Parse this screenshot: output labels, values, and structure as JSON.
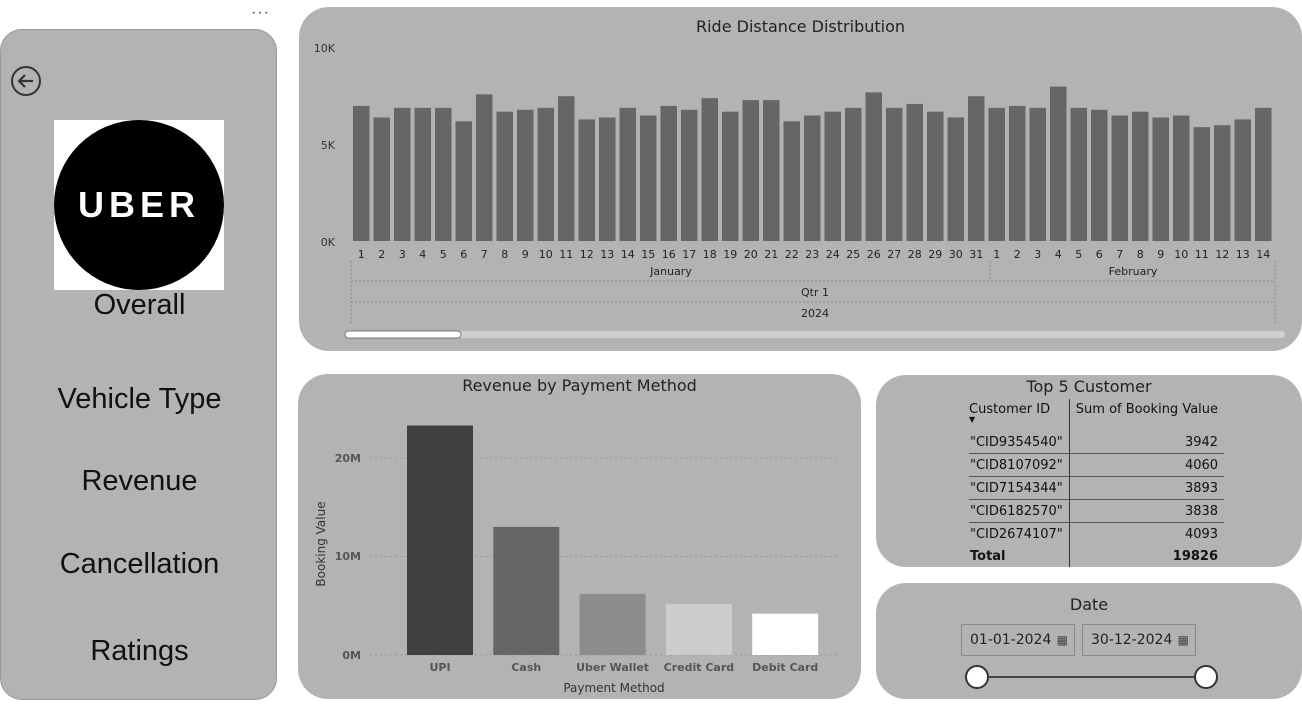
{
  "sidebar": {
    "more_label": "···",
    "logo_text": "UBER",
    "nav": [
      "Overall",
      "Vehicle Type",
      "Revenue",
      "Cancellation",
      "Ratings"
    ]
  },
  "ride_chart": {
    "title": "Ride Distance Distribution",
    "y_ticks": [
      "10K",
      "5K",
      "0K"
    ],
    "month_labels": [
      "January",
      "February"
    ],
    "quarter_label": "Qtr 1",
    "year_label": "2024"
  },
  "revenue_chart": {
    "title": "Revenue by Payment Method",
    "y_ticks": [
      "20M",
      "10M",
      "0M"
    ],
    "xlabel": "Payment Method",
    "ylabel": "Booking Value"
  },
  "top_customers": {
    "title": "Top 5 Customer",
    "col_id": "Customer ID",
    "col_value": "Sum of Booking Value",
    "sort_icon": "sort-descending-icon",
    "rows": [
      {
        "id": "\"CID9354540\"",
        "value": "3942"
      },
      {
        "id": "\"CID8107092\"",
        "value": "4060"
      },
      {
        "id": "\"CID7154344\"",
        "value": "3893"
      },
      {
        "id": "\"CID6182570\"",
        "value": "3838"
      },
      {
        "id": "\"CID2674107\"",
        "value": "4093"
      }
    ],
    "total_label": "Total",
    "total_value": "19826"
  },
  "date_filter": {
    "title": "Date",
    "start": "01-01-2024",
    "end": "30-12-2024",
    "calendar_icon": "calendar-icon"
  },
  "chart_data": [
    {
      "type": "bar",
      "title": "Ride Distance Distribution",
      "xlabel": "",
      "ylabel": "",
      "ylim": [
        0,
        10000
      ],
      "categories": [
        "1",
        "2",
        "3",
        "4",
        "5",
        "6",
        "7",
        "8",
        "9",
        "10",
        "11",
        "12",
        "13",
        "14",
        "15",
        "16",
        "17",
        "18",
        "19",
        "20",
        "21",
        "22",
        "23",
        "24",
        "25",
        "26",
        "27",
        "28",
        "29",
        "30",
        "31",
        "1",
        "2",
        "3",
        "4",
        "5",
        "6",
        "7",
        "8",
        "9",
        "10",
        "11",
        "12",
        "13",
        "14"
      ],
      "values": [
        7000,
        6400,
        6900,
        6900,
        6900,
        6200,
        7600,
        6700,
        6800,
        6900,
        7500,
        6300,
        6400,
        6900,
        6500,
        7000,
        6800,
        7400,
        6700,
        7300,
        7300,
        6200,
        6500,
        6700,
        6900,
        7700,
        6900,
        7100,
        6700,
        6400,
        7500,
        6900,
        7000,
        6900,
        8000,
        6900,
        6800,
        6500,
        6700,
        6400,
        6500,
        5900,
        6000,
        6300,
        6900
      ],
      "x_group_labels": [
        "January",
        "February"
      ],
      "grid": false
    },
    {
      "type": "bar",
      "title": "Revenue by Payment Method",
      "xlabel": "Payment Method",
      "ylabel": "Booking Value",
      "ylim": [
        0,
        25000000
      ],
      "categories": [
        "UPI",
        "Cash",
        "Uber Wallet",
        "Credit Card",
        "Debit Card"
      ],
      "values": [
        23300000,
        13000000,
        6200000,
        5200000,
        4200000
      ],
      "colors": [
        "#404040",
        "#666666",
        "#8c8c8c",
        "#cccccc",
        "#ffffff"
      ],
      "grid": true
    }
  ]
}
